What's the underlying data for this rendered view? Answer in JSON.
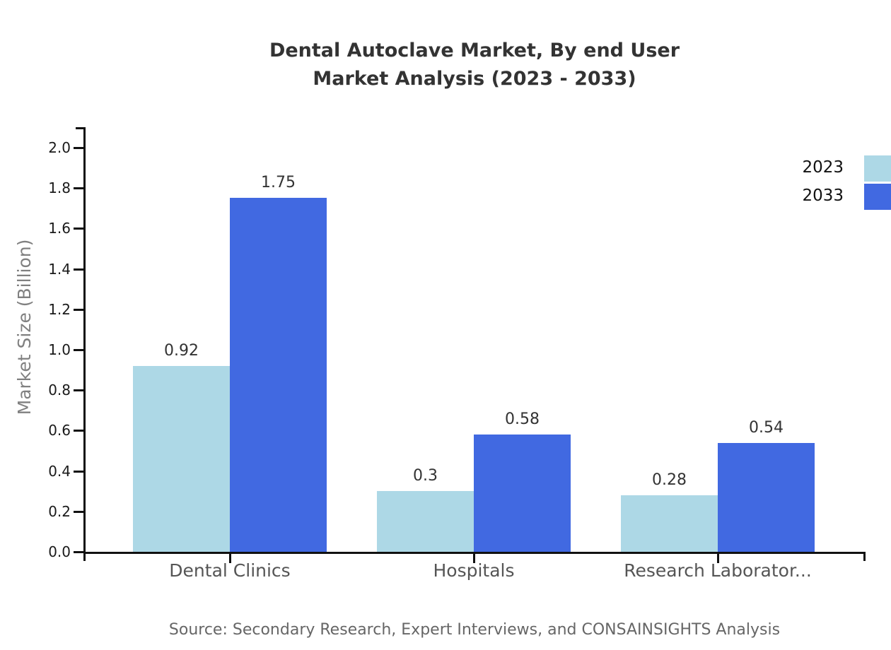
{
  "title": {
    "line1": "Dental Autoclave Market, By end User",
    "line2": "Market Analysis (2023 - 2033)"
  },
  "source": "Source: Secondary Research, Expert Interviews, and CONSAINSIGHTS Analysis",
  "chart_data": {
    "type": "bar",
    "title": "Dental Autoclave Market, By end User Market Analysis (2023 - 2033)",
    "categories": [
      "Dental Clinics",
      "Hospitals",
      "Research Laborator..."
    ],
    "series": [
      {
        "name": "2023",
        "color": "#ADD8E6",
        "values": [
          0.92,
          0.3,
          0.28
        ]
      },
      {
        "name": "2033",
        "color": "#4169E1",
        "values": [
          1.75,
          0.58,
          0.54
        ]
      }
    ],
    "bar_value_labels": [
      [
        "0.92",
        "0.3",
        "0.28"
      ],
      [
        "1.75",
        "0.58",
        "0.54"
      ]
    ],
    "xlabel": "",
    "ylabel": "Market Size (Billion)",
    "ylim": [
      0.0,
      2.0
    ],
    "ytick_step": 0.2,
    "ytick_labels": [
      "0.0",
      "0.2",
      "0.4",
      "0.6",
      "0.8",
      "1.0",
      "1.2",
      "1.4",
      "1.6",
      "1.8",
      "2.0"
    ],
    "grid": false,
    "legend_position": "top-right",
    "legend_entries": [
      "2023",
      "2033"
    ]
  },
  "colors": {
    "axis": "#111111",
    "title_text": "#333333",
    "ytick_text": "#1a1a1a",
    "category_text": "#555555",
    "ylabel_text": "#808080",
    "value_label_text": "#333333",
    "source_text": "#666666",
    "background": "#ffffff"
  }
}
